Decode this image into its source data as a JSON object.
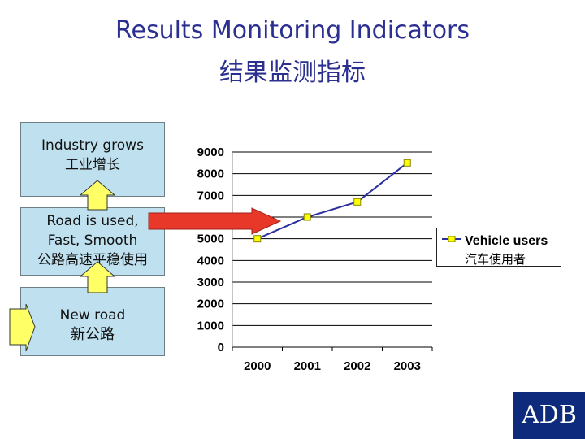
{
  "title": "Results Monitoring Indicators",
  "title_zh": "结果监测指标",
  "boxes": [
    {
      "lines": [
        "Industry grows",
        "工业增长"
      ]
    },
    {
      "lines": [
        "Road is used,",
        "Fast, Smooth",
        "公路高速平稳使用"
      ]
    },
    {
      "lines": [
        "New road",
        "新公路"
      ]
    }
  ],
  "colors": {
    "title": "#2b2f8f",
    "box_fill": "#bfe0ee",
    "up_arrow": "#ffff66",
    "red_arrow": "#e8382a",
    "series_line": "#2b2f9f",
    "marker": "#ffff00",
    "logo_bg": "#0d2a7c"
  },
  "logo_text": "ADB",
  "chart_data": {
    "type": "line",
    "title": "",
    "xlabel": "",
    "ylabel": "",
    "categories": [
      "2000",
      "2001",
      "2002",
      "2003"
    ],
    "ylim": [
      0,
      9000
    ],
    "yticks": [
      "9000",
      "8000",
      "7000",
      "6000",
      "5000",
      "4000",
      "3000",
      "2000",
      "1000",
      "0"
    ],
    "grid": true,
    "legend_position": "right",
    "series": [
      {
        "name": "Vehicle users",
        "name_zh": "汽车使用者",
        "values": [
          5000,
          6000,
          6700,
          8500
        ]
      }
    ]
  }
}
